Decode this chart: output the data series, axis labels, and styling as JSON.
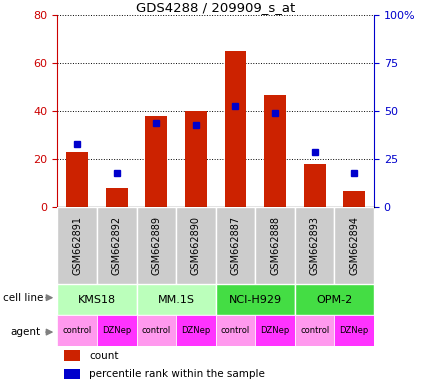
{
  "title": "GDS4288 / 209909_s_at",
  "samples": [
    "GSM662891",
    "GSM662892",
    "GSM662889",
    "GSM662890",
    "GSM662887",
    "GSM662888",
    "GSM662893",
    "GSM662894"
  ],
  "counts": [
    23,
    8,
    38,
    40,
    65,
    47,
    18,
    7
  ],
  "percentile_ranks": [
    33,
    18,
    44,
    43,
    53,
    49,
    29,
    18
  ],
  "ylim_left": [
    0,
    80
  ],
  "ylim_right": [
    0,
    100
  ],
  "yticks_left": [
    0,
    20,
    40,
    60,
    80
  ],
  "yticks_right": [
    0,
    25,
    50,
    75,
    100
  ],
  "ytick_labels_right": [
    "0",
    "25",
    "50",
    "75",
    "100%"
  ],
  "cell_lines": [
    {
      "name": "KMS18",
      "start": 0,
      "end": 2,
      "color": "#BBFFBB"
    },
    {
      "name": "MM.1S",
      "start": 2,
      "end": 4,
      "color": "#BBFFBB"
    },
    {
      "name": "NCI-H929",
      "start": 4,
      "end": 6,
      "color": "#44DD44"
    },
    {
      "name": "OPM-2",
      "start": 6,
      "end": 8,
      "color": "#44DD44"
    }
  ],
  "agent_pattern": [
    "control",
    "DZNep",
    "control",
    "DZNep",
    "control",
    "DZNep",
    "control",
    "DZNep"
  ],
  "agent_colors": {
    "control": "#FF99EE",
    "DZNep": "#FF33FF"
  },
  "bar_color": "#CC2200",
  "dot_color": "#0000CC",
  "tick_color_left": "#CC0000",
  "tick_color_right": "#0000CC",
  "legend_items": [
    {
      "label": "count",
      "color": "#CC2200"
    },
    {
      "label": "percentile rank within the sample",
      "color": "#0000CC"
    }
  ],
  "label_color_left": "cell line",
  "label_color_right": "agent"
}
